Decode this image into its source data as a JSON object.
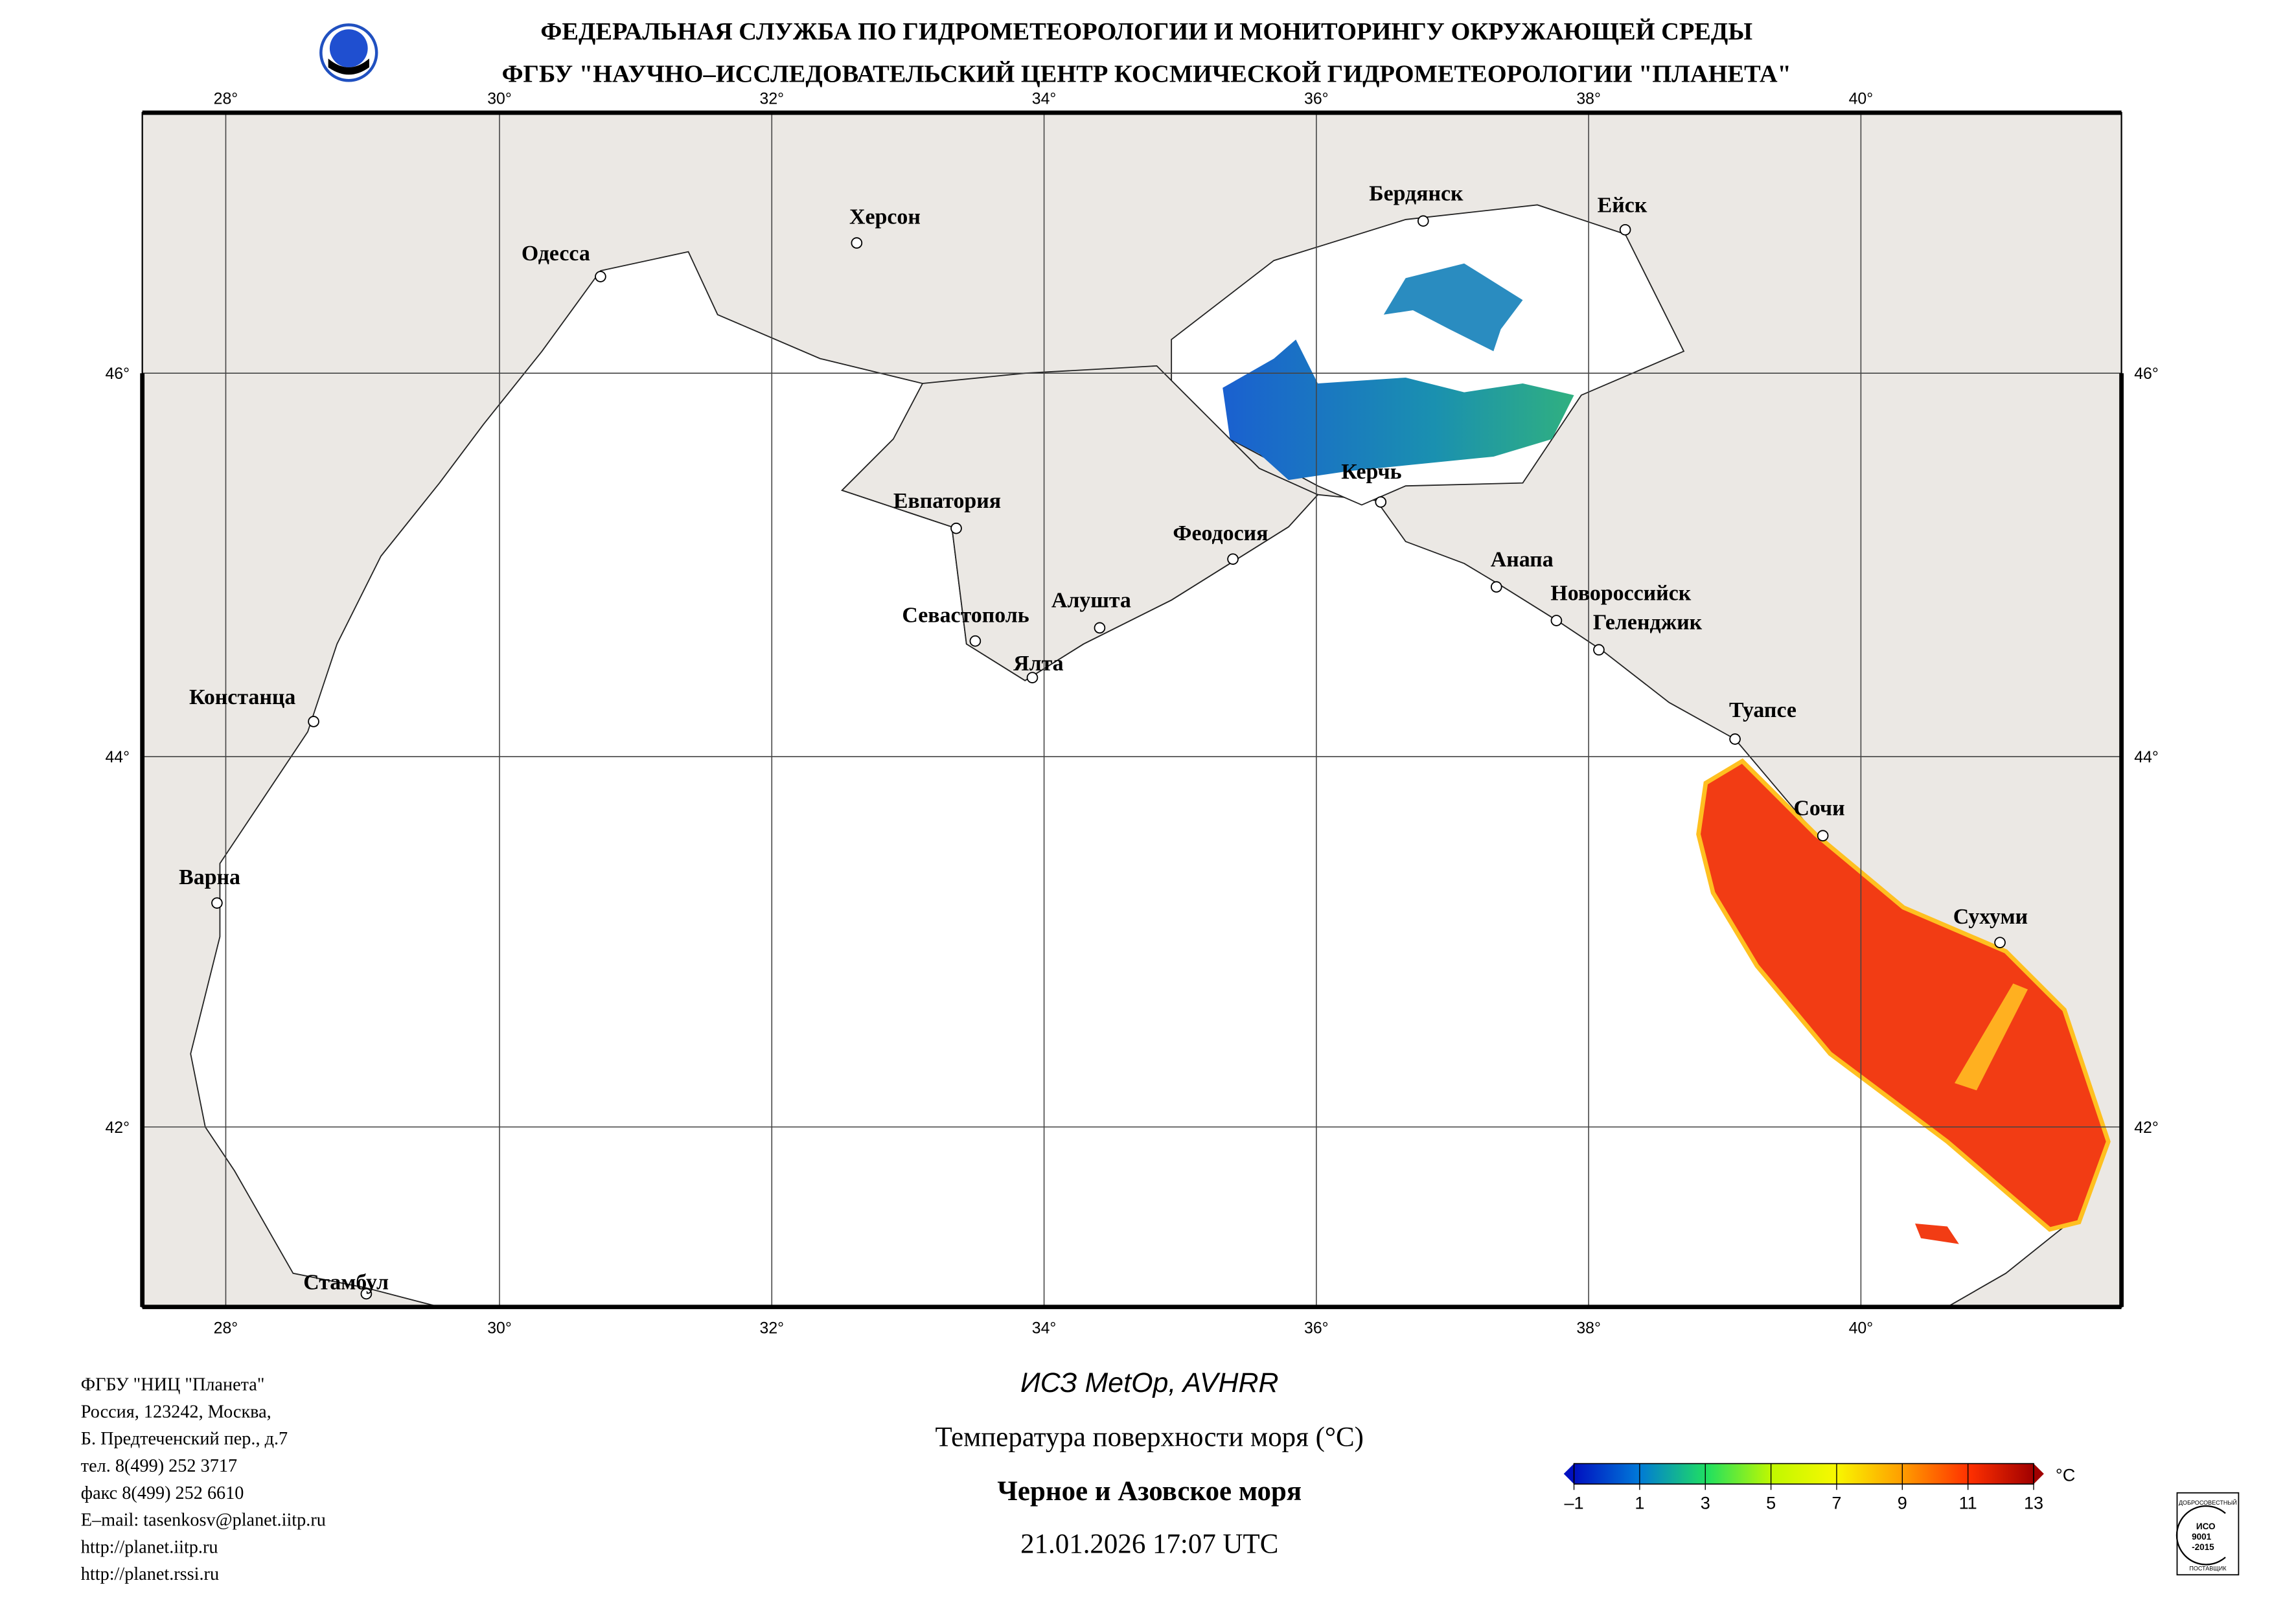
{
  "header": {
    "line1": "ФЕДЕРАЛЬНАЯ СЛУЖБА ПО ГИДРОМЕТЕОРОЛОГИИ И МОНИТОРИНГУ ОКРУЖАЮЩЕЙ СРЕДЫ",
    "line2": "ФГБУ \"НАУЧНО–ИССЛЕДОВАТЕЛЬСКИЙ ЦЕНТР КОСМИЧЕСКОЙ ГИДРОМЕТЕОРОЛОГИИ \"ПЛАНЕТА\"",
    "logo_icon": "planeta-logo-icon"
  },
  "map": {
    "lon_ticks": [
      "28°",
      "30°",
      "32°",
      "34°",
      "36°",
      "38°",
      "40°"
    ],
    "lat_ticks": [
      "46°",
      "44°",
      "42°"
    ],
    "colors": {
      "land": "#ebe8e4",
      "sea": "#ffffff",
      "warm_sst": "#f23c14",
      "cold_sst": "#1a7fc8"
    },
    "cities": [
      "Бердянск",
      "Ейск",
      "Херсон",
      "Одесса",
      "Керчь",
      "Евпатория",
      "Феодосия",
      "Анапа",
      "Новороссийск",
      "Геленджик",
      "Севастополь",
      "Алушта",
      "Ялта",
      "Констанца",
      "Туапсе",
      "Сочи",
      "Сухуми",
      "Варна",
      "Стамбул"
    ]
  },
  "footer": {
    "org": [
      "ФГБУ \"НИЦ \"Планета\"",
      "Россия, 123242, Москва,",
      "Б. Предтеченский пер., д.7",
      "тел. 8(499) 252 3717",
      "факс 8(499) 252 6610",
      "E–mail: tasenkosv@planet.iitp.ru",
      "http://planet.iitp.ru",
      "http://planet.rssi.ru"
    ],
    "satellite": "ИСЗ MetOp, AVHRR",
    "product": "Температура поверхности моря (°С)",
    "region": "Черное и Азовское моря",
    "datetime": "21.01.2026 17:07 UTC"
  },
  "colorbar": {
    "unit": "°C",
    "ticks": [
      "–1",
      "1",
      "3",
      "5",
      "7",
      "9",
      "11",
      "13"
    ],
    "range": [
      -1,
      13
    ],
    "colors": [
      "#0010c0",
      "#0078d8",
      "#20e060",
      "#f8f800",
      "#ffa000",
      "#ff3000",
      "#a00000"
    ]
  },
  "iso_badge": {
    "top": "ДОБРОСОВЕСТНЫЙ",
    "lines": [
      "ИСО",
      "9001",
      "-2015"
    ],
    "bottom": "ПОСТАВЩИК"
  }
}
